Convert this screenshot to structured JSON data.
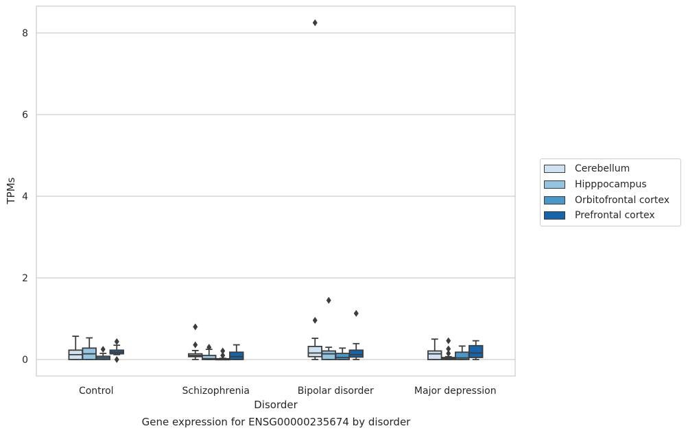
{
  "chart_data": {
    "type": "box",
    "title": "Gene expression for ENSG00000235674 by disorder",
    "xlabel": "Disorder",
    "ylabel": "TPMs",
    "ylim": [
      -0.4,
      8.65
    ],
    "yticks": [
      0,
      2,
      4,
      6,
      8
    ],
    "grid": true,
    "legend_position": "right",
    "categories": [
      "Control",
      "Schizophrenia",
      "Bipolar disorder",
      "Major depression"
    ],
    "series": [
      {
        "name": "Cerebellum",
        "color": "#d0e1f2",
        "boxes": [
          {
            "whisker_low": 0.0,
            "q1": 0.0,
            "median": 0.12,
            "q3": 0.23,
            "whisker_high": 0.57,
            "outliers": []
          },
          {
            "whisker_low": 0.0,
            "q1": 0.07,
            "median": 0.1,
            "q3": 0.14,
            "whisker_high": 0.22,
            "outliers": [
              0.36,
              0.8
            ]
          },
          {
            "whisker_low": 0.0,
            "q1": 0.07,
            "median": 0.16,
            "q3": 0.32,
            "whisker_high": 0.52,
            "outliers": [
              0.96,
              8.25
            ]
          },
          {
            "whisker_low": 0.0,
            "q1": 0.0,
            "median": 0.14,
            "q3": 0.21,
            "whisker_high": 0.5,
            "outliers": []
          }
        ]
      },
      {
        "name": "Hipppocampus",
        "color": "#94c4df",
        "boxes": [
          {
            "whisker_low": 0.0,
            "q1": 0.0,
            "median": 0.14,
            "q3": 0.28,
            "whisker_high": 0.53,
            "outliers": []
          },
          {
            "whisker_low": 0.0,
            "q1": 0.0,
            "median": 0.02,
            "q3": 0.1,
            "whisker_high": 0.25,
            "outliers": [
              0.3
            ]
          },
          {
            "whisker_low": 0.0,
            "q1": 0.0,
            "median": 0.14,
            "q3": 0.21,
            "whisker_high": 0.3,
            "outliers": [
              1.45
            ]
          },
          {
            "whisker_low": 0.0,
            "q1": 0.0,
            "median": 0.02,
            "q3": 0.05,
            "whisker_high": 0.07,
            "outliers": [
              0.15,
              0.26,
              0.46
            ]
          }
        ]
      },
      {
        "name": "Orbitofrontal cortex",
        "color": "#4a98c9",
        "boxes": [
          {
            "whisker_low": 0.0,
            "q1": 0.0,
            "median": 0.04,
            "q3": 0.08,
            "whisker_high": 0.15,
            "outliers": [
              0.25
            ]
          },
          {
            "whisker_low": 0.0,
            "q1": 0.0,
            "median": 0.0,
            "q3": 0.02,
            "whisker_high": 0.03,
            "outliers": [
              0.1,
              0.21
            ]
          },
          {
            "whisker_low": 0.0,
            "q1": 0.0,
            "median": 0.05,
            "q3": 0.15,
            "whisker_high": 0.28,
            "outliers": []
          },
          {
            "whisker_low": 0.0,
            "q1": 0.0,
            "median": 0.04,
            "q3": 0.18,
            "whisker_high": 0.33,
            "outliers": []
          }
        ]
      },
      {
        "name": "Prefrontal cortex",
        "color": "#1764ab",
        "boxes": [
          {
            "whisker_low": 0.12,
            "q1": 0.14,
            "median": 0.18,
            "q3": 0.23,
            "whisker_high": 0.35,
            "outliers": [
              0.0,
              0.44
            ]
          },
          {
            "whisker_low": 0.0,
            "q1": 0.0,
            "median": 0.07,
            "q3": 0.18,
            "whisker_high": 0.36,
            "outliers": []
          },
          {
            "whisker_low": 0.0,
            "q1": 0.06,
            "median": 0.12,
            "q3": 0.23,
            "whisker_high": 0.39,
            "outliers": [
              1.13
            ]
          },
          {
            "whisker_low": 0.0,
            "q1": 0.05,
            "median": 0.16,
            "q3": 0.34,
            "whisker_high": 0.46,
            "outliers": []
          }
        ]
      }
    ]
  }
}
